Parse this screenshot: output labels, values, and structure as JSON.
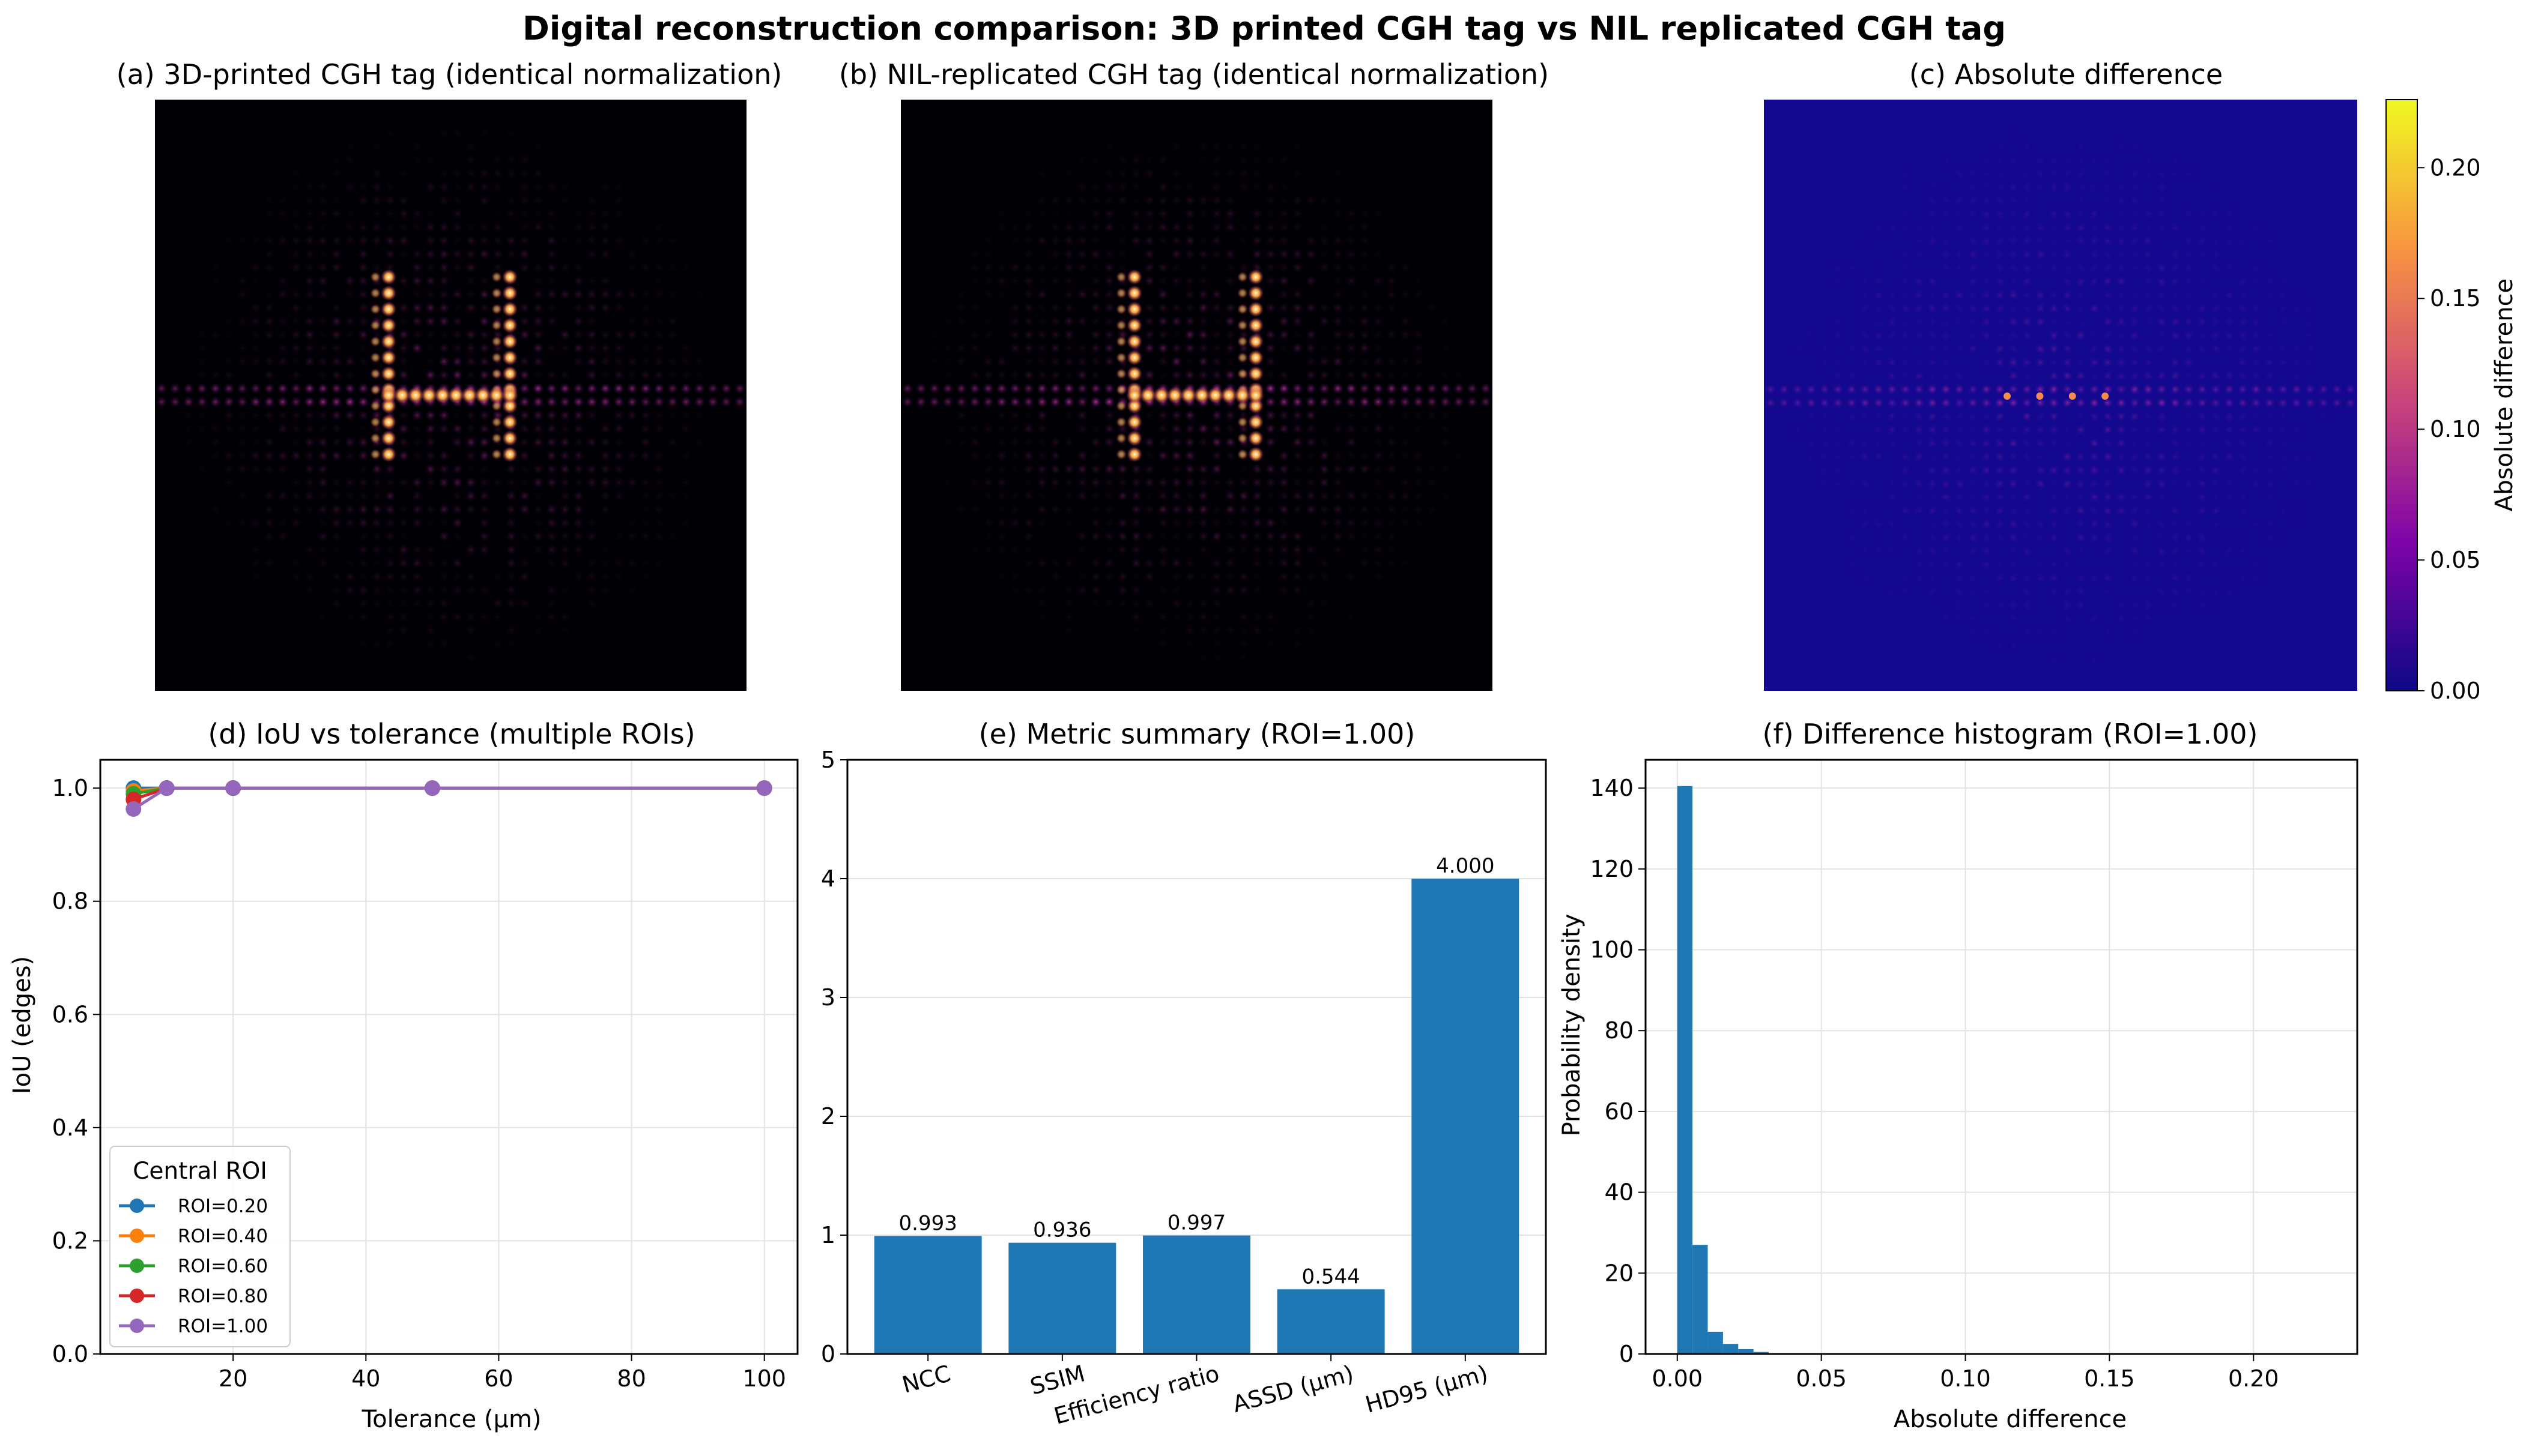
{
  "suptitle": "Digital reconstruction comparison: 3D printed CGH tag vs NIL replicated CGH tag",
  "panel_a": {
    "title": "(a) 3D-printed CGH tag (identical normalization)"
  },
  "panel_b": {
    "title": "(b) NIL-replicated CGH tag (identical normalization)"
  },
  "panel_c": {
    "title": "(c) Absolute difference",
    "colorbar_label": "Absolute difference",
    "colorbar_ticks": [
      "0.00",
      "0.05",
      "0.10",
      "0.15",
      "0.20"
    ]
  },
  "chart_data": [
    {
      "type": "line",
      "title": "(d) IoU vs tolerance (multiple ROIs)",
      "xlabel": "Tolerance (µm)",
      "ylabel": "IoU (edges)",
      "xlim": [
        0,
        105
      ],
      "ylim": [
        0.0,
        1.05
      ],
      "xticks": [
        "20",
        "40",
        "60",
        "80",
        "100"
      ],
      "yticks": [
        "0.0",
        "0.2",
        "0.4",
        "0.6",
        "0.8",
        "1.0"
      ],
      "x": [
        5,
        10,
        20,
        50,
        100
      ],
      "legend_title": "Central ROI",
      "legend_position": "lower-left",
      "series": [
        {
          "name": "ROI=0.20",
          "color": "#1f77b4",
          "values": [
            1.0,
            1.0,
            1.0,
            1.0,
            1.0
          ]
        },
        {
          "name": "ROI=0.40",
          "color": "#ff7f0e",
          "values": [
            0.995,
            1.0,
            1.0,
            1.0,
            1.0
          ]
        },
        {
          "name": "ROI=0.60",
          "color": "#2ca02c",
          "values": [
            0.99,
            1.0,
            1.0,
            1.0,
            1.0
          ]
        },
        {
          "name": "ROI=0.80",
          "color": "#d62728",
          "values": [
            0.98,
            1.0,
            1.0,
            1.0,
            1.0
          ]
        },
        {
          "name": "ROI=1.00",
          "color": "#9467bd",
          "values": [
            0.963,
            1.0,
            1.0,
            1.0,
            1.0
          ]
        }
      ]
    },
    {
      "type": "bar",
      "title": "(e) Metric summary (ROI=1.00)",
      "categories": [
        "NCC",
        "SSIM",
        "Efficiency ratio",
        "ASSD (µm)",
        "HD95 (µm)"
      ],
      "values": [
        0.993,
        0.936,
        0.997,
        0.544,
        4.0
      ],
      "value_labels": [
        "0.993",
        "0.936",
        "0.997",
        "0.544",
        "4.000"
      ],
      "ylim": [
        0,
        5
      ],
      "yticks": [
        "0",
        "1",
        "2",
        "3",
        "4",
        "5"
      ],
      "color": "#1f77b4"
    },
    {
      "type": "bar",
      "title": "(f) Difference histogram (ROI=1.00)",
      "xlabel": "Absolute difference",
      "ylabel": "Probability density",
      "xlim": [
        -0.011,
        0.236
      ],
      "ylim": [
        0,
        147
      ],
      "xticks": [
        "0.00",
        "0.05",
        "0.10",
        "0.15",
        "0.20"
      ],
      "yticks": [
        "0",
        "20",
        "40",
        "60",
        "80",
        "100",
        "120",
        "140"
      ],
      "bin_edges": [
        0.0,
        0.00529,
        0.01058,
        0.01587,
        0.02116,
        0.02645,
        0.03174
      ],
      "values": [
        140.5,
        27,
        5.5,
        2.5,
        1.2,
        0.5
      ],
      "color": "#1f77b4"
    }
  ]
}
